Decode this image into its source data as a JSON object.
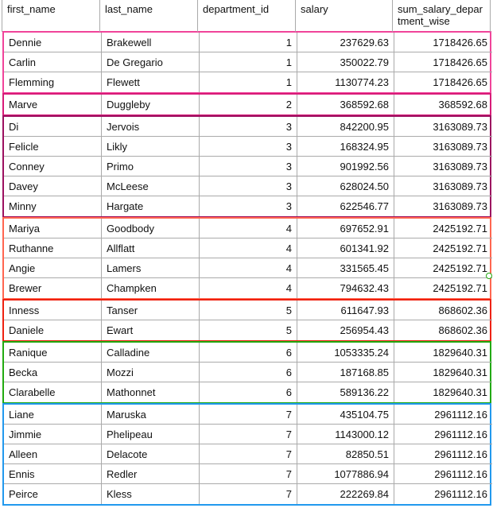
{
  "columns": [
    "first_name",
    "last_name",
    "department_id",
    "salary",
    "sum_salary_department_wise"
  ],
  "groups": [
    {
      "color": "#f0449a",
      "rows": [
        [
          "Dennie",
          "Brakewell",
          "1",
          "237629.63",
          "1718426.65"
        ],
        [
          "Carlin",
          "De Gregario",
          "1",
          "350022.79",
          "1718426.65"
        ],
        [
          "Flemming",
          "Flewett",
          "1",
          "1130774.23",
          "1718426.65"
        ]
      ]
    },
    {
      "color": "#d81b78",
      "rows": [
        [
          "Marve",
          "Duggleby",
          "2",
          "368592.68",
          "368592.68"
        ]
      ]
    },
    {
      "color": "#9c1060",
      "rows": [
        [
          "Di",
          "Jervois",
          "3",
          "842200.95",
          "3163089.73"
        ],
        [
          "Felicle",
          "Likly",
          "3",
          "168324.95",
          "3163089.73"
        ],
        [
          "Conney",
          "Primo",
          "3",
          "901992.56",
          "3163089.73"
        ],
        [
          "Davey",
          "McLeese",
          "3",
          "628024.50",
          "3163089.73"
        ],
        [
          "Minny",
          "Hargate",
          "3",
          "622546.77",
          "3163089.73"
        ]
      ]
    },
    {
      "color": "#ff6650",
      "rows": [
        [
          "Mariya",
          "Goodbody",
          "4",
          "697652.91",
          "2425192.71"
        ],
        [
          "Ruthanne",
          "Allflatt",
          "4",
          "601341.92",
          "2425192.71"
        ],
        [
          "Angie",
          "Lamers",
          "4",
          "331565.45",
          "2425192.71"
        ],
        [
          "Brewer",
          "Champken",
          "4",
          "794632.43",
          "2425192.71"
        ]
      ]
    },
    {
      "color": "#ee2211",
      "rows": [
        [
          "Inness",
          "Tanser",
          "5",
          "611647.93",
          "868602.36"
        ],
        [
          "Daniele",
          "Ewart",
          "5",
          "256954.43",
          "868602.36"
        ]
      ]
    },
    {
      "color": "#22aa11",
      "rows": [
        [
          "Ranique",
          "Calladine",
          "6",
          "1053335.24",
          "1829640.31"
        ],
        [
          "Becka",
          "Mozzi",
          "6",
          "187168.85",
          "1829640.31"
        ],
        [
          "Clarabelle",
          "Mathonnet",
          "6",
          "589136.22",
          "1829640.31"
        ]
      ]
    },
    {
      "color": "#2299ee",
      "rows": [
        [
          "Liane",
          "Maruska",
          "7",
          "435104.75",
          "2961112.16"
        ],
        [
          "Jimmie",
          "Phelipeau",
          "7",
          "1143000.12",
          "2961112.16"
        ],
        [
          "Alleen",
          "Delacote",
          "7",
          "82850.51",
          "2961112.16"
        ],
        [
          "Ennis",
          "Redler",
          "7",
          "1077886.94",
          "2961112.16"
        ],
        [
          "Peirce",
          "Kless",
          "7",
          "222269.84",
          "2961112.16"
        ]
      ]
    }
  ]
}
